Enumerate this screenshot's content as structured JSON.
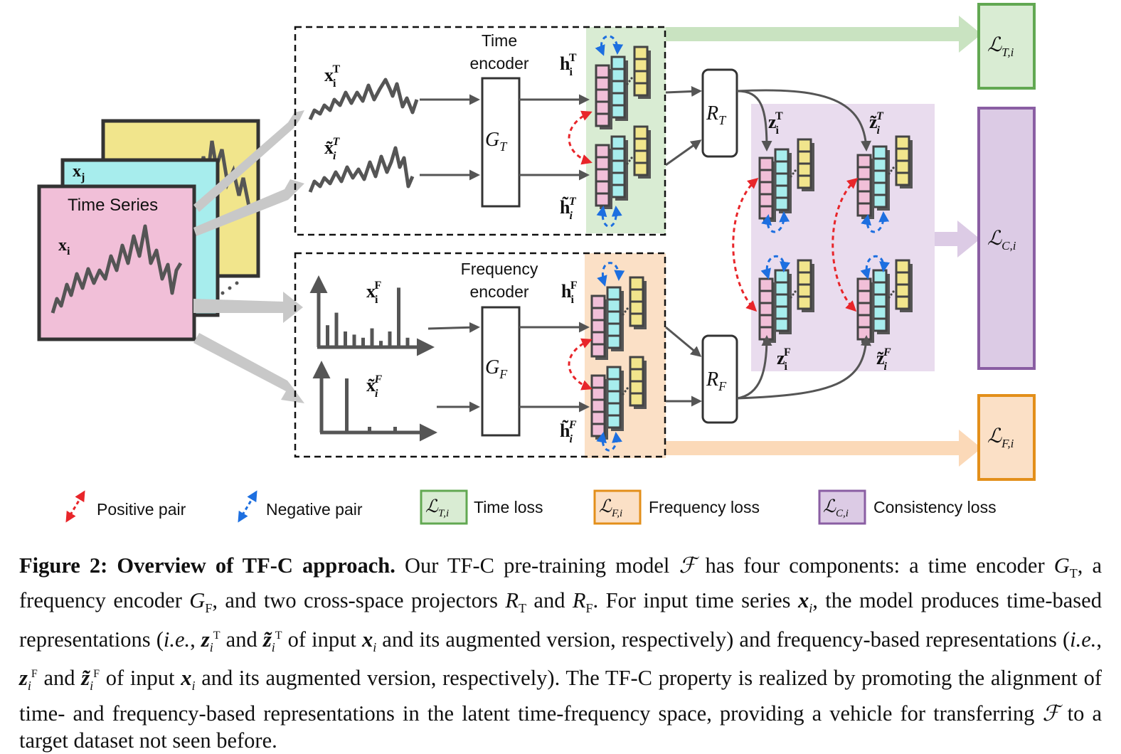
{
  "figure": {
    "time_series": {
      "title": "Time Series",
      "xi": "x",
      "xi_sub": "i",
      "xj": "x",
      "xj_sub": "j"
    },
    "time_block": {
      "encoder_line1": "Time",
      "encoder_line2": "encoder",
      "encoder_symbol": "G",
      "encoder_sub": "T",
      "x_label": "x",
      "x_sub": "i",
      "x_sup": "T",
      "x_aug_label": "x̃",
      "x_aug_sub": "i",
      "x_aug_sup": "T",
      "h_label": "h",
      "h_sub": "i",
      "h_sup": "T",
      "h_aug_label": "h̃",
      "h_aug_sub": "i",
      "h_aug_sup": "T"
    },
    "freq_block": {
      "encoder_line1": "Frequency",
      "encoder_line2": "encoder",
      "encoder_symbol": "G",
      "encoder_sub": "F",
      "x_label": "x",
      "x_sub": "i",
      "x_sup": "F",
      "x_aug_label": "x̃",
      "x_aug_sub": "i",
      "x_aug_sup": "F",
      "h_label": "h",
      "h_sub": "i",
      "h_sup": "F",
      "h_aug_label": "h̃",
      "h_aug_sub": "i",
      "h_aug_sup": "F",
      "bars_orig": [
        0.35,
        0.55,
        0.25,
        0.2,
        0.15,
        0.3,
        0.1,
        0.25,
        0.95,
        0.15
      ],
      "bars_aug": [
        0.95,
        0.1,
        0.1
      ]
    },
    "projectors": {
      "time": "R",
      "time_sub": "T",
      "freq": "R",
      "freq_sub": "F"
    },
    "latent": {
      "zT": "z",
      "zT_sub": "i",
      "zT_sup": "T",
      "zT_aug": "z̃",
      "zT_aug_sub": "i",
      "zT_aug_sup": "T",
      "zF": "z",
      "zF_sub": "i",
      "zF_sup": "F",
      "zF_aug": "z̃",
      "zF_aug_sub": "i",
      "zF_aug_sup": "F"
    },
    "losses": {
      "time": "ℒ",
      "time_sub": "T,i",
      "consistency": "ℒ",
      "consistency_sub": "C,i",
      "freq": "ℒ",
      "freq_sub": "F,i"
    },
    "legend": {
      "positive": "Positive pair",
      "negative": "Negative pair",
      "time_loss": "Time loss",
      "freq_loss": "Frequency loss",
      "consistency_loss": "Consistency loss"
    },
    "colors": {
      "pink": "#f1bfd8",
      "cyan": "#a7eded",
      "yellow": "#f1e58c",
      "green_bg": "#d9ecd3",
      "green_border": "#62a852",
      "orange_bg": "#fbe0c6",
      "orange_border": "#e38f1a",
      "purple_bg": "#e9dcee",
      "purple_border": "#8a5ea3",
      "red_arrow": "#e8252a",
      "blue_arrow": "#1d6fe0",
      "dark": "#555555"
    }
  },
  "caption": {
    "label": "Figure 2: Overview of TF-C approach.",
    "text": "Our TF-C pre-training model ℱ has four components: a time encoder G_T, a frequency encoder G_F, and two cross-space projectors R_T and R_F. For input time series x_i, the model produces time-based representations (i.e., z_i^T and z̃_i^T of input x_i and its augmented version, respectively) and frequency-based representations (i.e., z_i^F and z̃_i^F of input x_i and its augmented version, respectively). The TF-C property is realized by promoting the alignment of time- and frequency-based representations in the latent time-frequency space, providing a vehicle for transferring ℱ to a target dataset not seen before.",
    "p1": "Our TF-C pre-training model ",
    "F": "ℱ",
    "p2": " has four components: a time encoder ",
    "GT": "G",
    "GT_sub": "T",
    "p3": ", a frequency encoder ",
    "GF": "G",
    "GF_sub": "F",
    "p4": ", and two cross-space projectors ",
    "RT": "R",
    "RT_sub": "T",
    "p5": " and ",
    "RF": "R",
    "RF_sub": "F",
    "p6": ". For input time series ",
    "x": "x",
    "x_sub": "i",
    "p7": ", the model produces time-based representations (",
    "ie": "i.e.",
    "p8": ", ",
    "z": "z",
    "z_sub": "i",
    "sup_T": "T",
    "p9": " and ",
    "zt": "z̃",
    "p10": " of input ",
    "p11": " and its augmented version, respectively) and frequency-based representations (",
    "sup_F": "F",
    "p12": ". The TF-C property is realized by promoting the alignment of time- and frequency-based representations in the latent time-frequency space, providing a vehicle for transferring ",
    "p13": " to a target dataset not seen before."
  }
}
